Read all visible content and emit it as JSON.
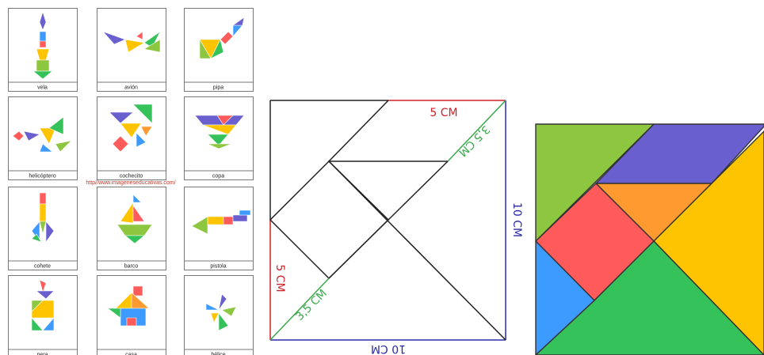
{
  "cards": [
    {
      "label": "vela"
    },
    {
      "label": "avión"
    },
    {
      "label": "pipa"
    },
    {
      "label": "helicóptero"
    },
    {
      "label": "cochecito"
    },
    {
      "label": "copa"
    },
    {
      "label": "cohete"
    },
    {
      "label": "barco"
    },
    {
      "label": "pistola"
    },
    {
      "label": "pera"
    },
    {
      "label": "casa"
    },
    {
      "label": "hélice"
    }
  ],
  "source_url": "http//www.imageneseducativas.com/",
  "diagram": {
    "labels": [
      "5 CM",
      "3,5 CM",
      "10 CM",
      "10 CM",
      "5 CM",
      "3,5 CM"
    ]
  }
}
